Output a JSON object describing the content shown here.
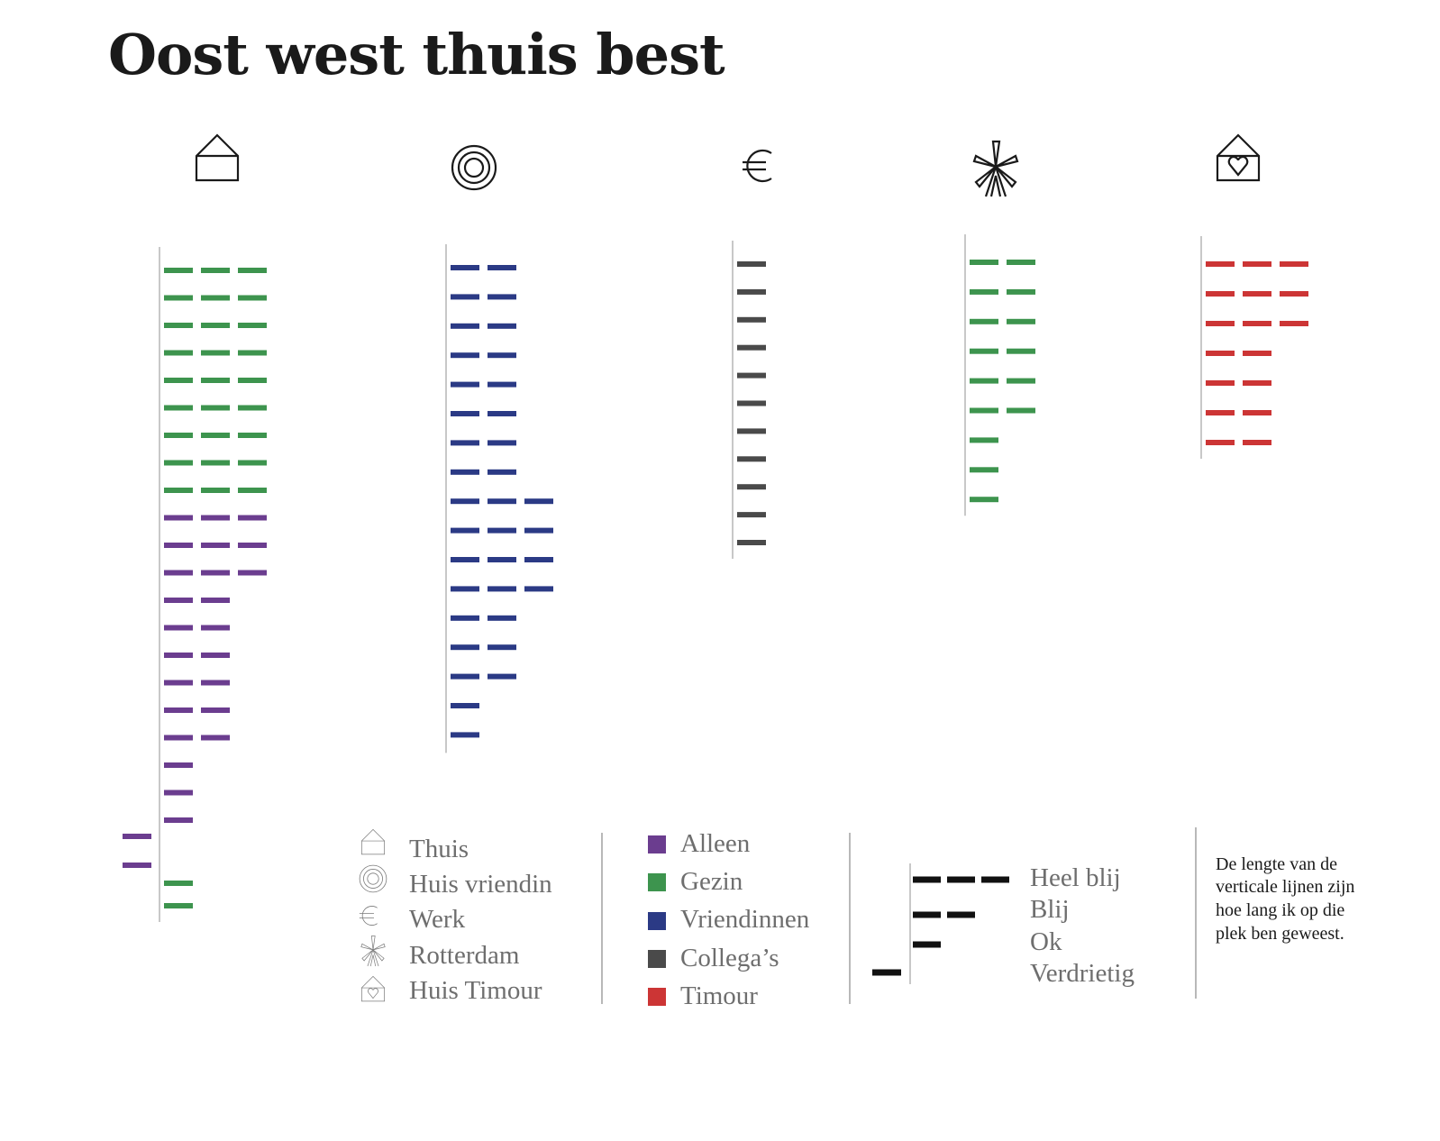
{
  "chart_data": {
    "type": "dash-timeline",
    "title": "Oost west thuis best",
    "colors": {
      "alleen": "#6b3d8f",
      "gezin": "#3d944e",
      "vriendinnen": "#2b3a85",
      "collegas": "#4a4a4a",
      "timour": "#cc3535",
      "mood": "#111111"
    },
    "columns": [
      {
        "place": "thuis",
        "icon": "house-icon",
        "rows": [
          {
            "level": 3,
            "who": "gezin"
          },
          {
            "level": 3,
            "who": "gezin"
          },
          {
            "level": 3,
            "who": "gezin"
          },
          {
            "level": 3,
            "who": "gezin"
          },
          {
            "level": 3,
            "who": "gezin"
          },
          {
            "level": 3,
            "who": "gezin"
          },
          {
            "level": 3,
            "who": "gezin"
          },
          {
            "level": 3,
            "who": "gezin"
          },
          {
            "level": 3,
            "who": "gezin"
          },
          {
            "level": 3,
            "who": "alleen"
          },
          {
            "level": 3,
            "who": "alleen"
          },
          {
            "level": 3,
            "who": "alleen"
          },
          {
            "level": 2,
            "who": "alleen"
          },
          {
            "level": 2,
            "who": "alleen"
          },
          {
            "level": 2,
            "who": "alleen"
          },
          {
            "level": 2,
            "who": "alleen"
          },
          {
            "level": 2,
            "who": "alleen"
          },
          {
            "level": 2,
            "who": "alleen"
          },
          {
            "level": 1,
            "who": "alleen"
          },
          {
            "level": 1,
            "who": "alleen"
          },
          {
            "level": 1,
            "who": "alleen"
          },
          {
            "level": 0,
            "who": "alleen"
          },
          {
            "level": 0,
            "who": "alleen"
          },
          {
            "level": 1,
            "who": "gezin"
          },
          {
            "level": 1,
            "who": "gezin"
          }
        ]
      },
      {
        "place": "huis-vriendin",
        "icon": "target-icon",
        "rows": [
          {
            "level": 2,
            "who": "vriendinnen"
          },
          {
            "level": 2,
            "who": "vriendinnen"
          },
          {
            "level": 2,
            "who": "vriendinnen"
          },
          {
            "level": 2,
            "who": "vriendinnen"
          },
          {
            "level": 2,
            "who": "vriendinnen"
          },
          {
            "level": 2,
            "who": "vriendinnen"
          },
          {
            "level": 2,
            "who": "vriendinnen"
          },
          {
            "level": 2,
            "who": "vriendinnen"
          },
          {
            "level": 3,
            "who": "vriendinnen"
          },
          {
            "level": 3,
            "who": "vriendinnen"
          },
          {
            "level": 3,
            "who": "vriendinnen"
          },
          {
            "level": 3,
            "who": "vriendinnen"
          },
          {
            "level": 2,
            "who": "vriendinnen"
          },
          {
            "level": 2,
            "who": "vriendinnen"
          },
          {
            "level": 2,
            "who": "vriendinnen"
          },
          {
            "level": 1,
            "who": "vriendinnen"
          },
          {
            "level": 1,
            "who": "vriendinnen"
          }
        ]
      },
      {
        "place": "werk",
        "icon": "euro-icon",
        "rows": [
          {
            "level": 1,
            "who": "collegas"
          },
          {
            "level": 1,
            "who": "collegas"
          },
          {
            "level": 1,
            "who": "collegas"
          },
          {
            "level": 1,
            "who": "collegas"
          },
          {
            "level": 1,
            "who": "collegas"
          },
          {
            "level": 1,
            "who": "collegas"
          },
          {
            "level": 1,
            "who": "collegas"
          },
          {
            "level": 1,
            "who": "collegas"
          },
          {
            "level": 1,
            "who": "collegas"
          },
          {
            "level": 1,
            "who": "collegas"
          },
          {
            "level": 1,
            "who": "collegas"
          }
        ]
      },
      {
        "place": "rotterdam",
        "icon": "windmill-icon",
        "rows": [
          {
            "level": 2,
            "who": "gezin"
          },
          {
            "level": 2,
            "who": "gezin"
          },
          {
            "level": 2,
            "who": "gezin"
          },
          {
            "level": 2,
            "who": "gezin"
          },
          {
            "level": 2,
            "who": "gezin"
          },
          {
            "level": 2,
            "who": "gezin"
          },
          {
            "level": 1,
            "who": "gezin"
          },
          {
            "level": 1,
            "who": "gezin"
          },
          {
            "level": 1,
            "who": "gezin"
          }
        ]
      },
      {
        "place": "huis-timour",
        "icon": "heart-house-icon",
        "rows": [
          {
            "level": 3,
            "who": "timour"
          },
          {
            "level": 3,
            "who": "timour"
          },
          {
            "level": 3,
            "who": "timour"
          },
          {
            "level": 2,
            "who": "timour"
          },
          {
            "level": 2,
            "who": "timour"
          },
          {
            "level": 2,
            "who": "timour"
          },
          {
            "level": 2,
            "who": "timour"
          }
        ]
      }
    ]
  },
  "legend_places": [
    {
      "label": "Thuis",
      "icon": "house-icon"
    },
    {
      "label": "Huis vriendin",
      "icon": "target-icon"
    },
    {
      "label": "Werk",
      "icon": "euro-icon"
    },
    {
      "label": "Rotterdam",
      "icon": "windmill-icon"
    },
    {
      "label": "Huis Timour",
      "icon": "heart-house-icon"
    }
  ],
  "legend_people": [
    {
      "label": "Alleen",
      "key": "alleen"
    },
    {
      "label": "Gezin",
      "key": "gezin"
    },
    {
      "label": "Vriendinnen",
      "key": "vriendinnen"
    },
    {
      "label": "Collega’s",
      "key": "collegas"
    },
    {
      "label": "Timour",
      "key": "timour"
    }
  ],
  "legend_mood": [
    {
      "label": "Heel blij",
      "level": 3
    },
    {
      "label": "Blij",
      "level": 2
    },
    {
      "label": "Ok",
      "level": 1
    },
    {
      "label": "Verdrietig",
      "level": 0
    }
  ],
  "note": [
    "De lengte van de",
    "verticale lijnen zijn",
    "hoe lang ik op die",
    "plek ben geweest."
  ]
}
